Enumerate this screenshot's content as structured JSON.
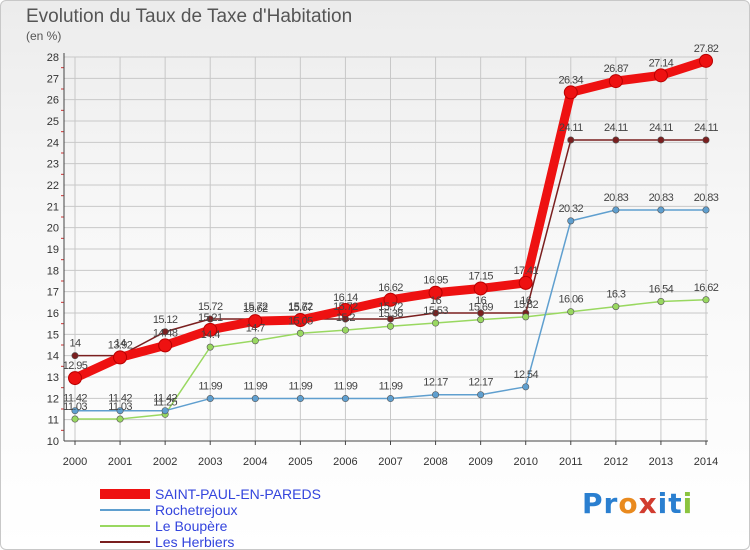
{
  "header": {
    "title": "Evolution du Taux de Taxe d'Habitation",
    "unit": "(en %)"
  },
  "logo": {
    "text": "Proxiti"
  },
  "colors": {
    "grid": "#c8c8c8",
    "axis": "#444444",
    "tick_text": "#333333",
    "data_label": "#444444"
  },
  "chart_data": {
    "type": "line",
    "title": "Evolution du Taux de Taxe d'Habitation",
    "ylabel": "(en %)",
    "xlabel": "",
    "x": [
      "2000",
      "2001",
      "2002",
      "2003",
      "2004",
      "2005",
      "2006",
      "2007",
      "2008",
      "2009",
      "2010",
      "2011",
      "2012",
      "2013",
      "2014"
    ],
    "ylim": [
      10,
      28
    ],
    "yticks": [
      10,
      11,
      12,
      13,
      14,
      15,
      16,
      17,
      18,
      19,
      20,
      21,
      22,
      23,
      24,
      25,
      26,
      27,
      28
    ],
    "grid": true,
    "legend_position": "bottom-left",
    "series": [
      {
        "name": "Les Herbiers",
        "color": "#7a1f1f",
        "values": [
          14,
          14,
          15.12,
          15.72,
          15.72,
          15.72,
          15.72,
          15.72,
          16,
          16,
          16,
          24.11,
          24.11,
          24.11,
          24.11
        ],
        "labels": [
          "14",
          "14",
          "15.12",
          "15.72",
          "15.72",
          "15.72",
          "15.72",
          "15.72",
          "16",
          "16",
          "16",
          "24.11",
          "24.11",
          "24.11",
          "24.11"
        ]
      },
      {
        "name": "Le Boupère",
        "color": "#99d860",
        "values": [
          11.03,
          11.03,
          11.25,
          14.4,
          14.7,
          15.05,
          15.2,
          15.38,
          15.53,
          15.69,
          15.82,
          16.06,
          16.3,
          16.54,
          16.62
        ],
        "labels": [
          "11.03",
          "11.03",
          "11.25",
          "14.4",
          "14.7",
          "15.05",
          "15.2",
          "15.38",
          "15.53",
          "15.69",
          "15.82",
          "16.06",
          "16.3",
          "16.54",
          "16.62"
        ]
      },
      {
        "name": "Rochetrejoux",
        "color": "#5f9fcf",
        "values": [
          11.42,
          11.42,
          11.42,
          11.99,
          11.99,
          11.99,
          11.99,
          11.99,
          12.17,
          12.17,
          12.54,
          20.32,
          20.83,
          20.83,
          20.83
        ],
        "labels": [
          "11.42",
          "11.42",
          "11.42",
          "11.99",
          "11.99",
          "11.99",
          "11.99",
          "11.99",
          "12.17",
          "12.17",
          "12.54",
          "20.32",
          "20.83",
          "20.83",
          "20.83"
        ]
      },
      {
        "name": "SAINT-PAUL-EN-PAREDS",
        "color": "#ee1111",
        "values": [
          12.95,
          13.92,
          14.48,
          15.21,
          15.62,
          15.67,
          16.14,
          16.62,
          16.95,
          17.15,
          17.41,
          26.34,
          26.87,
          27.14,
          27.82
        ],
        "labels": [
          "12.95",
          "13.92",
          "14.48",
          "15.21",
          "15.62",
          "15.67",
          "16.14",
          "16.62",
          "16.95",
          "17.15",
          "17.41",
          "26.34",
          "26.87",
          "27.14",
          "27.82"
        ]
      }
    ]
  },
  "legend": {
    "items": [
      {
        "label": "SAINT-PAUL-EN-PAREDS",
        "color": "#ee1111",
        "thickness": 10
      },
      {
        "label": "Rochetrejoux",
        "color": "#5f9fcf",
        "thickness": 2
      },
      {
        "label": "Le Boupère",
        "color": "#99d860",
        "thickness": 2
      },
      {
        "label": "Les Herbiers",
        "color": "#7a1f1f",
        "thickness": 2
      }
    ]
  }
}
